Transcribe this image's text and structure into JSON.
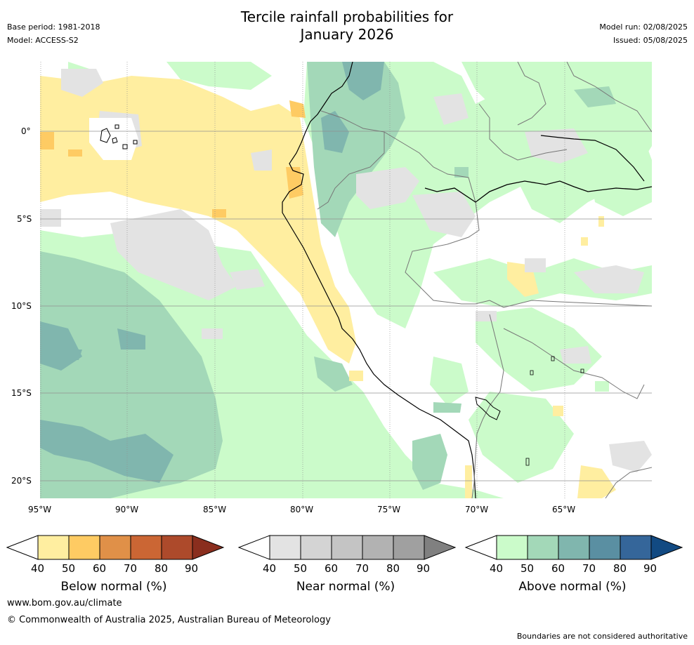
{
  "title_line1": "Tercile rainfall probabilities for",
  "title_line2": "January 2026",
  "base_period": "Base period: 1981-2018",
  "model": "Model: ACCESS-S2",
  "model_run": "Model run: 02/08/2025",
  "issued": "Issued: 05/08/2025",
  "lat_labels": [
    "0°",
    "5°S",
    "10°S",
    "15°S",
    "20°S"
  ],
  "lon_labels": [
    "95°W",
    "90°W",
    "85°W",
    "80°W",
    "75°W",
    "70°W",
    "65°W"
  ],
  "colorbars": [
    {
      "label": "Below normal (%)",
      "ticks": [
        "40",
        "50",
        "60",
        "70",
        "80",
        "90"
      ],
      "colors": [
        "#ffeea0",
        "#fecb63",
        "#e09048",
        "#cb6634",
        "#ad4a2b",
        "#8a2e1e"
      ]
    },
    {
      "label": "Near normal (%)",
      "ticks": [
        "40",
        "50",
        "60",
        "70",
        "80",
        "90"
      ],
      "colors": [
        "#e3e3e3",
        "#d4d4d4",
        "#c4c4c4",
        "#b2b2b2",
        "#a0a0a0",
        "#808080"
      ]
    },
    {
      "label": "Above normal (%)",
      "ticks": [
        "40",
        "50",
        "60",
        "70",
        "80",
        "90"
      ],
      "colors": [
        "#cbfbca",
        "#a3d8b8",
        "#80b6ae",
        "#5a8fa2",
        "#35669a",
        "#124a82"
      ]
    }
  ],
  "footer_url": "www.bom.gov.au/climate",
  "copyright": "© Commonwealth of Australia 2025, Australian Bureau of Meteorology",
  "disclaimer": "Boundaries are not considered authoritative"
}
